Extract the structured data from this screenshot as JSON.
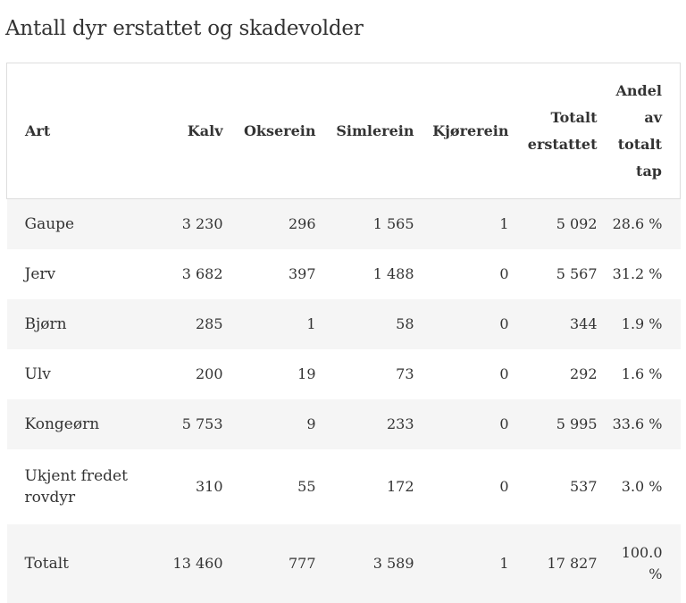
{
  "title": "Antall dyr erstattet og skadevolder",
  "table": {
    "headers": [
      "Art",
      "Kalv",
      "Okserein",
      "Simlerein",
      "Kjørerein",
      "Totalt erstattet",
      "Andel av totalt tap"
    ],
    "rows": [
      [
        "Gaupe",
        "3 230",
        "296",
        "1 565",
        "1",
        "5 092",
        "28.6 %"
      ],
      [
        "Jerv",
        "3 682",
        "397",
        "1 488",
        "0",
        "5 567",
        "31.2 %"
      ],
      [
        "Bjørn",
        "285",
        "1",
        "58",
        "0",
        "344",
        "1.9 %"
      ],
      [
        "Ulv",
        "200",
        "19",
        "73",
        "0",
        "292",
        "1.6 %"
      ],
      [
        "Kongeørn",
        "5 753",
        "9",
        "233",
        "0",
        "5 995",
        "33.6 %"
      ],
      [
        "Ukjent fredet rovdyr",
        "310",
        "55",
        "172",
        "0",
        "537",
        "3.0 %"
      ],
      [
        "Totalt",
        "13 460",
        "777",
        "3 589",
        "1",
        "17 827",
        "100.0 %"
      ]
    ]
  }
}
